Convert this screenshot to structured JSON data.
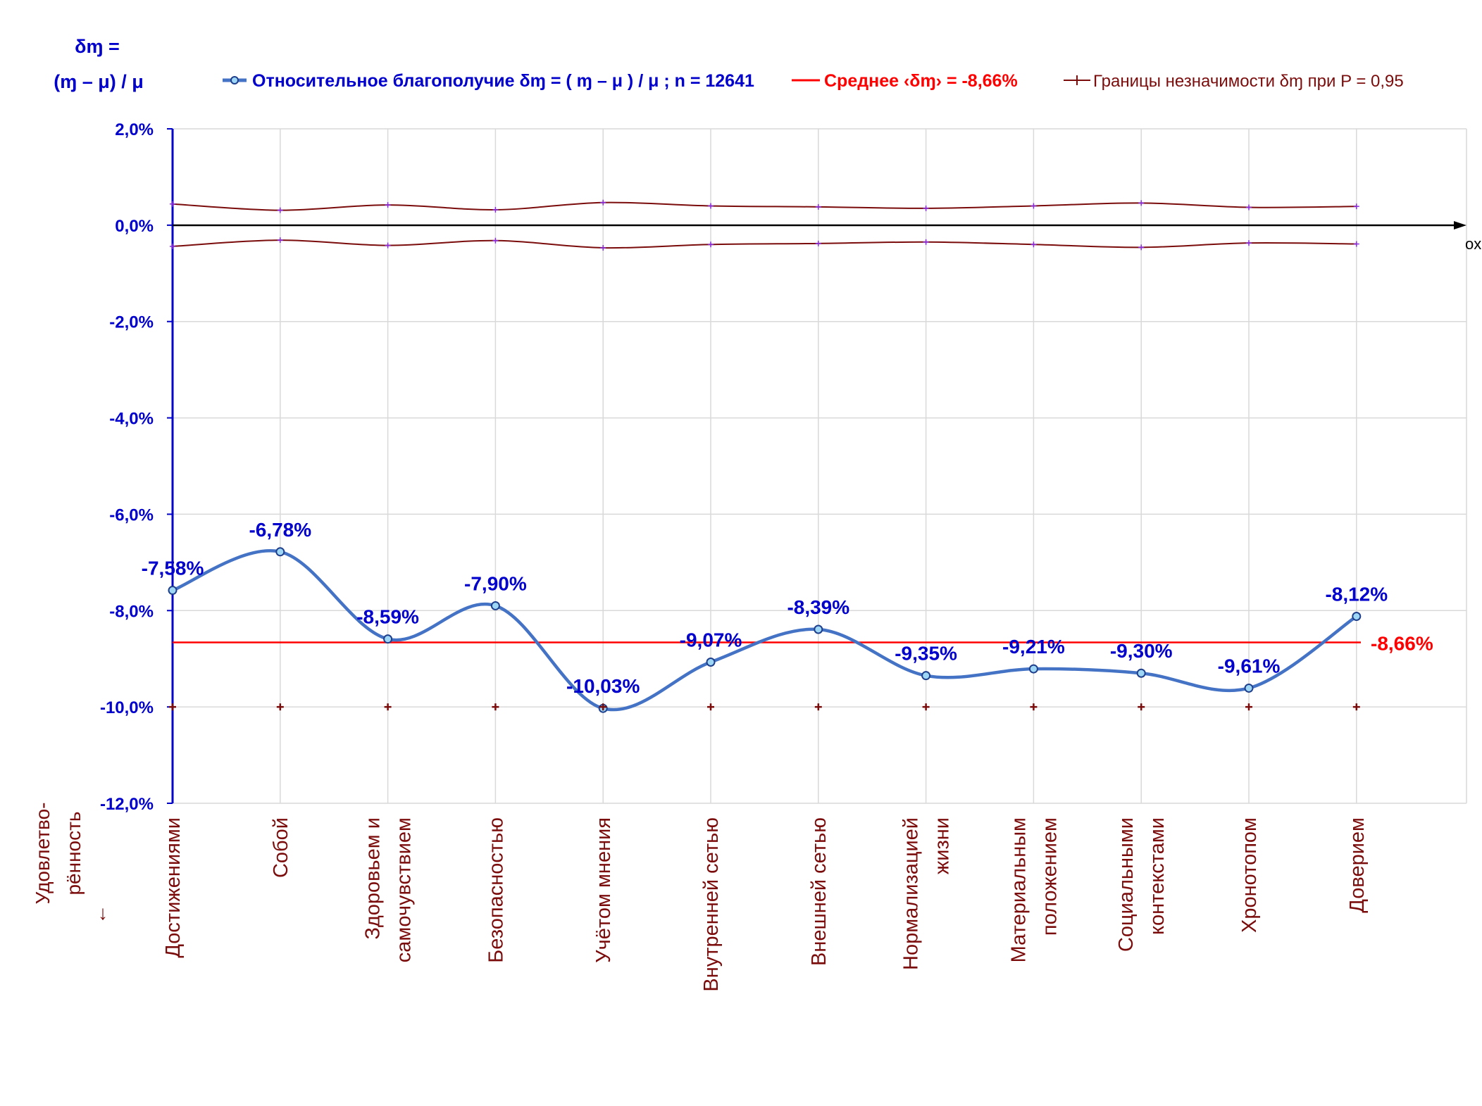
{
  "chart_data": {
    "type": "line",
    "y_title_line1": "δɱ =",
    "y_title_line2": "(ɱ – μ) / μ",
    "x_axis_label": "ox",
    "x_title": [
      "Удовлетво-",
      "рённость",
      "↓"
    ],
    "ylim": [
      -12.0,
      2.0
    ],
    "y_ticks": [
      2.0,
      0.0,
      -2.0,
      -4.0,
      -6.0,
      -8.0,
      -10.0,
      -12.0
    ],
    "y_tick_labels": [
      "2,0%",
      "0,0%",
      "-2,0%",
      "-4,0%",
      "-6,0%",
      "-8,0%",
      "-10,0%",
      "-12,0%"
    ],
    "grid": true,
    "legend_position": "top",
    "legend": {
      "series": "Относительное благополучие δɱ = ( ɱ – μ ) / μ ; n = 12641",
      "mean": "Среднее ‹δɱ› = -8,66%",
      "bounds": "Границы незначимости δɱ при P = 0,95"
    },
    "categories": [
      [
        "Достижениями"
      ],
      [
        "Собой"
      ],
      [
        "Здоровьем и",
        "самочувствием"
      ],
      [
        "Безопасностью"
      ],
      [
        "Учётом мнения"
      ],
      [
        "Внутренней сетью"
      ],
      [
        "Внешней сетью"
      ],
      [
        "Нормализацией",
        "жизни"
      ],
      [
        "Материальным",
        "положением"
      ],
      [
        "Социальными",
        "контекстами"
      ],
      [
        "Хронотопом"
      ],
      [
        "Доверием"
      ]
    ],
    "series": [
      {
        "name": "Относительное благополучие δɱ = ( ɱ – μ ) / μ ; n = 12641",
        "values": [
          -7.58,
          -6.78,
          -8.59,
          -7.9,
          -10.03,
          -9.07,
          -8.39,
          -9.35,
          -9.21,
          -9.3,
          -9.61,
          -8.12
        ],
        "labels": [
          "-7,58%",
          "-6,78%",
          "-8,59%",
          "-7,90%",
          "-10,03%",
          "-9,07%",
          "-8,39%",
          "-9,35%",
          "-9,21%",
          "-9,30%",
          "-9,61%",
          "-8,12%"
        ],
        "color": "#4472c4"
      },
      {
        "name": "Среднее ‹δɱ› = -8,66%",
        "value": -8.66,
        "label": "-8,66%",
        "color": "#ff0000"
      },
      {
        "name": "Границы незначимости δɱ при P = 0,95",
        "upper": [
          0.44,
          0.31,
          0.42,
          0.32,
          0.47,
          0.4,
          0.38,
          0.35,
          0.4,
          0.46,
          0.37,
          0.39
        ],
        "lower": [
          -0.44,
          -0.31,
          -0.42,
          -0.32,
          -0.47,
          -0.4,
          -0.38,
          -0.35,
          -0.4,
          -0.46,
          -0.37,
          -0.39
        ],
        "color": "#7b0c0c"
      },
      {
        "name": "",
        "values": [
          -10.0,
          -10.0,
          -10.0,
          -10.0,
          -10.0,
          -10.0,
          -10.0,
          -10.0,
          -10.0,
          -10.0,
          -10.0,
          -10.0
        ],
        "color": "#7b0c0c"
      }
    ],
    "colors": {
      "axis_text": "#0000cc",
      "category_text": "#7b0c0c",
      "grid": "#d9d9d9",
      "zero_axis": "#000000"
    }
  }
}
